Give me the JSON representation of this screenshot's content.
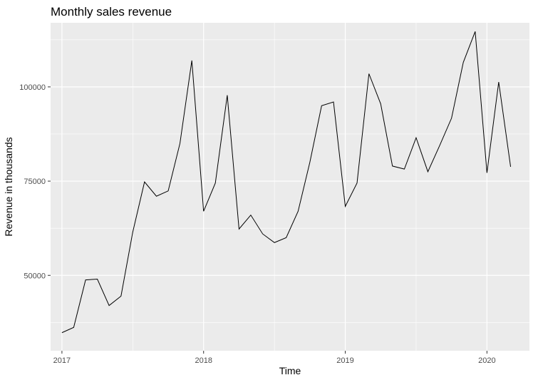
{
  "chart_data": {
    "type": "line",
    "title": "Monthly sales revenue",
    "xlabel": "Time",
    "ylabel": "Revenue in thousands",
    "xlim": [
      2016.92,
      2020.3
    ],
    "ylim": [
      30000,
      117000
    ],
    "x_ticks": [
      {
        "value": 2017,
        "label": "2017"
      },
      {
        "value": 2018,
        "label": "2018"
      },
      {
        "value": 2019,
        "label": "2019"
      },
      {
        "value": 2020,
        "label": "2020"
      }
    ],
    "y_ticks": [
      {
        "value": 50000,
        "label": "50000"
      },
      {
        "value": 75000,
        "label": "75000"
      },
      {
        "value": 100000,
        "label": "100000"
      }
    ],
    "grid": true,
    "legend": "none",
    "colors": {
      "panel": "#ebebeb",
      "grid": "#ffffff",
      "line": "#000000",
      "tick": "#4d4d4d"
    },
    "series": [
      {
        "x": [
          2017.0,
          2017.083,
          2017.167,
          2017.25,
          2017.333,
          2017.417,
          2017.5,
          2017.583,
          2017.667,
          2017.75,
          2017.833,
          2017.917,
          2018.0,
          2018.083,
          2018.167,
          2018.25,
          2018.333,
          2018.417,
          2018.5,
          2018.583,
          2018.667,
          2018.75,
          2018.833,
          2018.917,
          2019.0,
          2019.083,
          2019.167,
          2019.25,
          2019.333,
          2019.417,
          2019.5,
          2019.583,
          2019.667,
          2019.75,
          2019.833,
          2019.917,
          2020.0,
          2020.083,
          2020.167
        ],
        "values": [
          34800,
          36200,
          48800,
          49000,
          42000,
          44500,
          61500,
          74800,
          71000,
          72400,
          85000,
          107000,
          67000,
          74500,
          97800,
          62300,
          66000,
          61000,
          58700,
          60000,
          67000,
          80000,
          95000,
          96000,
          68300,
          74500,
          103500,
          95500,
          79000,
          78200,
          86500,
          77500,
          84500,
          91700,
          106500,
          114700,
          77200,
          101300,
          78800
        ]
      }
    ]
  }
}
